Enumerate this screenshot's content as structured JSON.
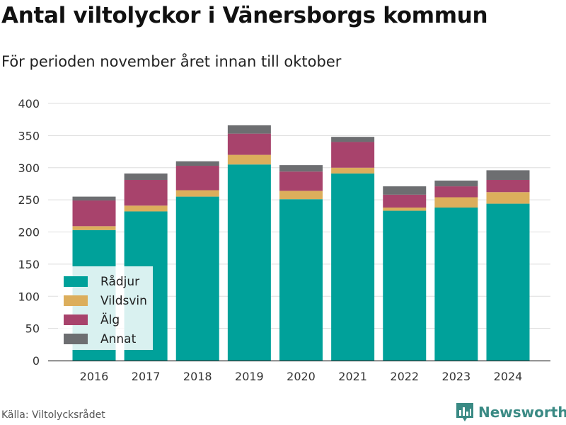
{
  "header": {
    "title": "Antal viltolyckor i Vänersborgs kommun",
    "subtitle": "För perioden november året innan till oktober"
  },
  "footer": {
    "source": "Källa: Viltolycksrådet",
    "brand": "Newsworthy",
    "brand_icon": "bar-chart-logo-icon",
    "brand_color": "#3a8a84"
  },
  "chart_data": {
    "type": "bar",
    "stacked": true,
    "categories": [
      "2016",
      "2017",
      "2018",
      "2019",
      "2020",
      "2021",
      "2022",
      "2023",
      "2024"
    ],
    "series": [
      {
        "name": "Rådjur",
        "color": "#00a19a",
        "values": [
          203,
          232,
          255,
          305,
          251,
          291,
          233,
          238,
          244
        ]
      },
      {
        "name": "Vildsvin",
        "color": "#dcae5c",
        "values": [
          6,
          9,
          10,
          15,
          13,
          9,
          5,
          16,
          18
        ]
      },
      {
        "name": "Älg",
        "color": "#a8436c",
        "values": [
          40,
          40,
          38,
          33,
          30,
          40,
          20,
          17,
          19
        ]
      },
      {
        "name": "Annat",
        "color": "#6d6e71",
        "values": [
          6,
          10,
          7,
          13,
          10,
          8,
          13,
          9,
          15
        ]
      }
    ],
    "yticks": [
      0,
      50,
      100,
      150,
      200,
      250,
      300,
      350,
      400
    ],
    "ylim": [
      0,
      400
    ],
    "grid": true,
    "legend": "bottom-left"
  }
}
